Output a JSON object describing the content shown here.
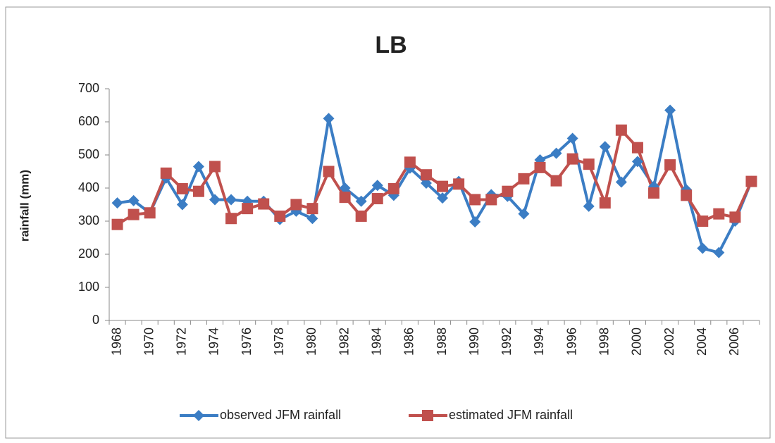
{
  "chart_data": {
    "type": "line",
    "title": "LB",
    "y_label": "rainfall (mm)",
    "categories": [
      "1968",
      null,
      "1970",
      null,
      "1972",
      null,
      "1974",
      null,
      "1976",
      null,
      "1978",
      null,
      "1980",
      null,
      "1982",
      null,
      "1984",
      null,
      "1986",
      null,
      "1988",
      null,
      "1990",
      null,
      "1992",
      null,
      "1994",
      null,
      "1996",
      null,
      "1998",
      null,
      "2000",
      null,
      "2002",
      null,
      "2004",
      null,
      "2006",
      null
    ],
    "series": [
      {
        "name": "observed JFM rainfall",
        "color": "#3b7dc4",
        "marker": "diamond",
        "values": [
          355,
          362,
          325,
          430,
          350,
          465,
          365,
          365,
          360,
          360,
          305,
          330,
          308,
          610,
          400,
          360,
          408,
          378,
          460,
          415,
          370,
          420,
          298,
          380,
          375,
          322,
          485,
          505,
          550,
          345,
          525,
          418,
          480,
          405,
          635,
          395,
          218,
          205,
          300,
          420
        ]
      },
      {
        "name": "estimated JFM rainfall",
        "color": "#c0504d",
        "marker": "square",
        "values": [
          290,
          320,
          325,
          445,
          398,
          390,
          465,
          308,
          338,
          352,
          315,
          350,
          338,
          450,
          372,
          315,
          368,
          398,
          478,
          440,
          405,
          412,
          365,
          365,
          390,
          428,
          462,
          422,
          488,
          472,
          355,
          575,
          522,
          385,
          470,
          378,
          300,
          322,
          312,
          420
        ]
      }
    ],
    "ylim": [
      0,
      700
    ],
    "yticks": [
      0,
      100,
      200,
      300,
      400,
      500,
      600,
      700
    ],
    "legend": "bottom"
  }
}
